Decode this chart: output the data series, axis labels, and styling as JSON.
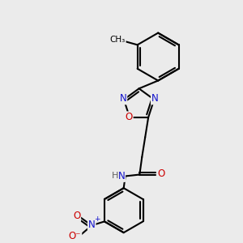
{
  "background_color": "#ebebeb",
  "bond_color": "#000000",
  "bond_width": 1.5,
  "atom_colors": {
    "N": "#1010cc",
    "O": "#cc0000",
    "H": "#606060",
    "C": "#000000"
  },
  "font_size_atom": 8.5,
  "font_size_small": 7.5
}
